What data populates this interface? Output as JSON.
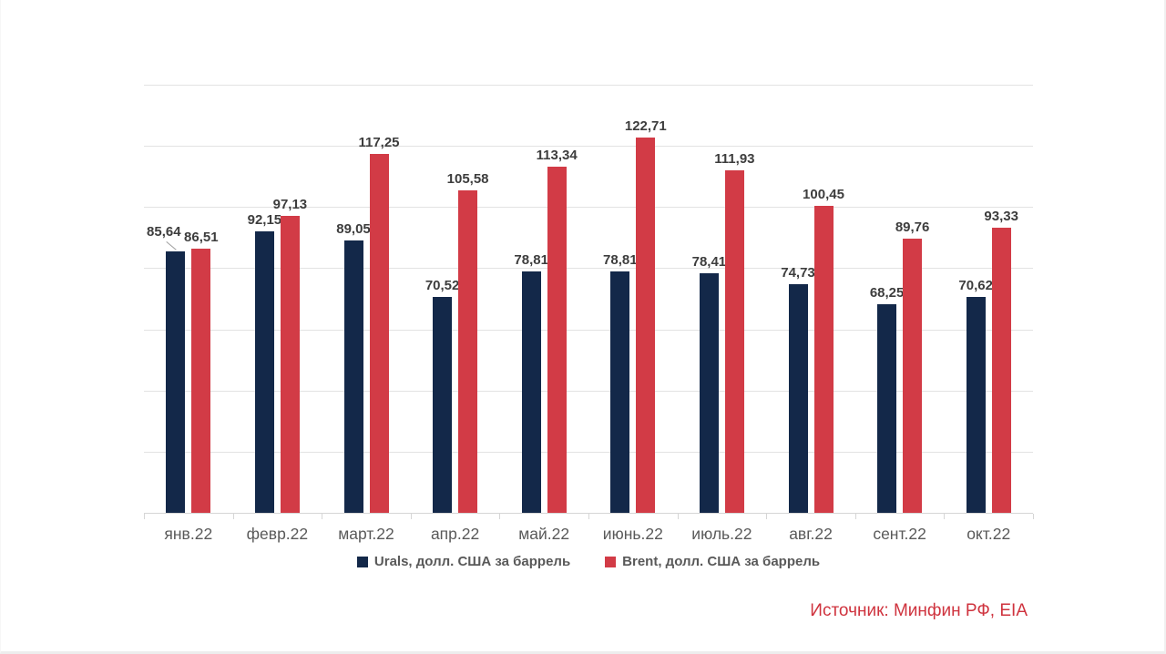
{
  "chart_data": {
    "type": "bar",
    "title": "",
    "categories": [
      "янв.22",
      "февр.22",
      "март.22",
      "апр.22",
      "май.22",
      "июнь.22",
      "июль.22",
      "авг.22",
      "сент.22",
      "окт.22"
    ],
    "series": [
      {
        "name": "Urals, долл. США за баррель",
        "color": "#132849",
        "values": [
          85.64,
          92.15,
          89.05,
          70.52,
          78.81,
          78.81,
          78.41,
          74.73,
          68.25,
          70.62
        ],
        "labels": [
          "85,64",
          "92,15",
          "89,05",
          "70,52",
          "78,81",
          "78,81",
          "78,41",
          "74,73",
          "68,25",
          "70,62"
        ]
      },
      {
        "name": "Brent, долл. США за баррель",
        "color": "#d23b46",
        "values": [
          86.51,
          97.13,
          117.25,
          105.58,
          113.34,
          122.71,
          111.93,
          100.45,
          89.76,
          93.33
        ],
        "labels": [
          "86,51",
          "97,13",
          "117,25",
          "105,58",
          "113,34",
          "122,71",
          "111,93",
          "100,45",
          "89,76",
          "93,33"
        ]
      }
    ],
    "ylim": [
      0,
      140
    ],
    "grid_step": 20,
    "grid": true,
    "legend_position": "bottom",
    "xlabel": "",
    "ylabel": ""
  },
  "source_note": "Источник: Минфин РФ, EIA",
  "colors": {
    "gridline": "#e2e2e2",
    "axis": "#d6d6d6",
    "data_label": "#3d3d3d",
    "x_label": "#595959",
    "legend_text": "#595959",
    "source_text": "#cf333e",
    "background": "#ffffff"
  }
}
